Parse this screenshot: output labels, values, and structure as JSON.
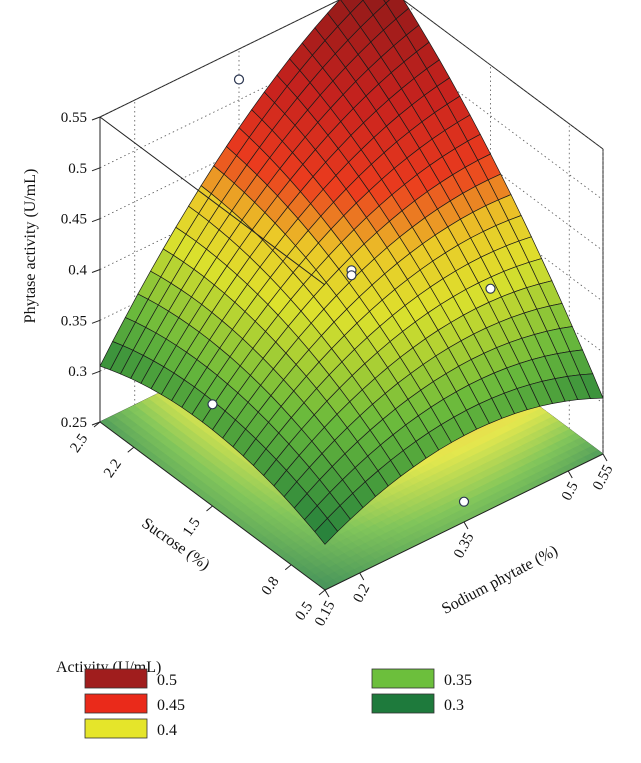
{
  "chart_data": {
    "type": "surface3d",
    "zlabel": "Phytase activity (U/mL)",
    "xlabel": "Sodium phytate (%)",
    "ylabel": "Sucrose (%)",
    "x_ticks": [
      "0.15",
      "0.2",
      "0.35",
      "0.5",
      "0.55"
    ],
    "x_tick_values": [
      0.15,
      0.2,
      0.35,
      0.5,
      0.55
    ],
    "y_ticks": [
      "0.5",
      "0.8",
      "1.5",
      "2.2",
      "2.5"
    ],
    "y_tick_values": [
      0.5,
      0.8,
      1.5,
      2.2,
      2.5
    ],
    "z_ticks": [
      "0.25",
      "0.3",
      "0.35",
      "0.4",
      "0.45",
      "0.5",
      "0.55"
    ],
    "z_tick_values": [
      0.25,
      0.3,
      0.35,
      0.4,
      0.45,
      0.5,
      0.55
    ],
    "xlim": [
      0.15,
      0.55
    ],
    "ylim": [
      0.5,
      2.5
    ],
    "zlim": [
      0.25,
      0.55
    ],
    "corner_values": {
      "sodium_0.15_sucrose_0.5": 0.295,
      "sodium_0.55_sucrose_0.5": 0.305,
      "sodium_0.15_sucrose_2.5": 0.305,
      "sodium_0.55_sucrose_2.5": 0.57
    },
    "observed_points": [
      {
        "sodium_phytate": 0.35,
        "sucrose": 1.5,
        "activity": 0.415
      },
      {
        "sodium_phytate": 0.35,
        "sucrose": 1.5,
        "activity": 0.41
      },
      {
        "sodium_phytate": 0.15,
        "sucrose": 1.5,
        "activity": 0.35
      },
      {
        "sodium_phytate": 0.55,
        "sucrose": 1.5,
        "activity": 0.33
      },
      {
        "sodium_phytate": 0.35,
        "sucrose": 0.5,
        "activity": 0.27
      },
      {
        "sodium_phytate": 0.35,
        "sucrose": 2.5,
        "activity": 0.52
      }
    ],
    "legend": {
      "title": "Activity (U/mL)",
      "position": "bottom-left",
      "entries": [
        {
          "label": "0.5",
          "color": "#a01d1d"
        },
        {
          "label": "0.45",
          "color": "#ea2a1a"
        },
        {
          "label": "0.4",
          "color": "#e5e52a"
        },
        {
          "label": "0.35",
          "color": "#6cbf3c"
        },
        {
          "label": "0.3",
          "color": "#1e7a3c"
        }
      ]
    },
    "grid": true
  }
}
